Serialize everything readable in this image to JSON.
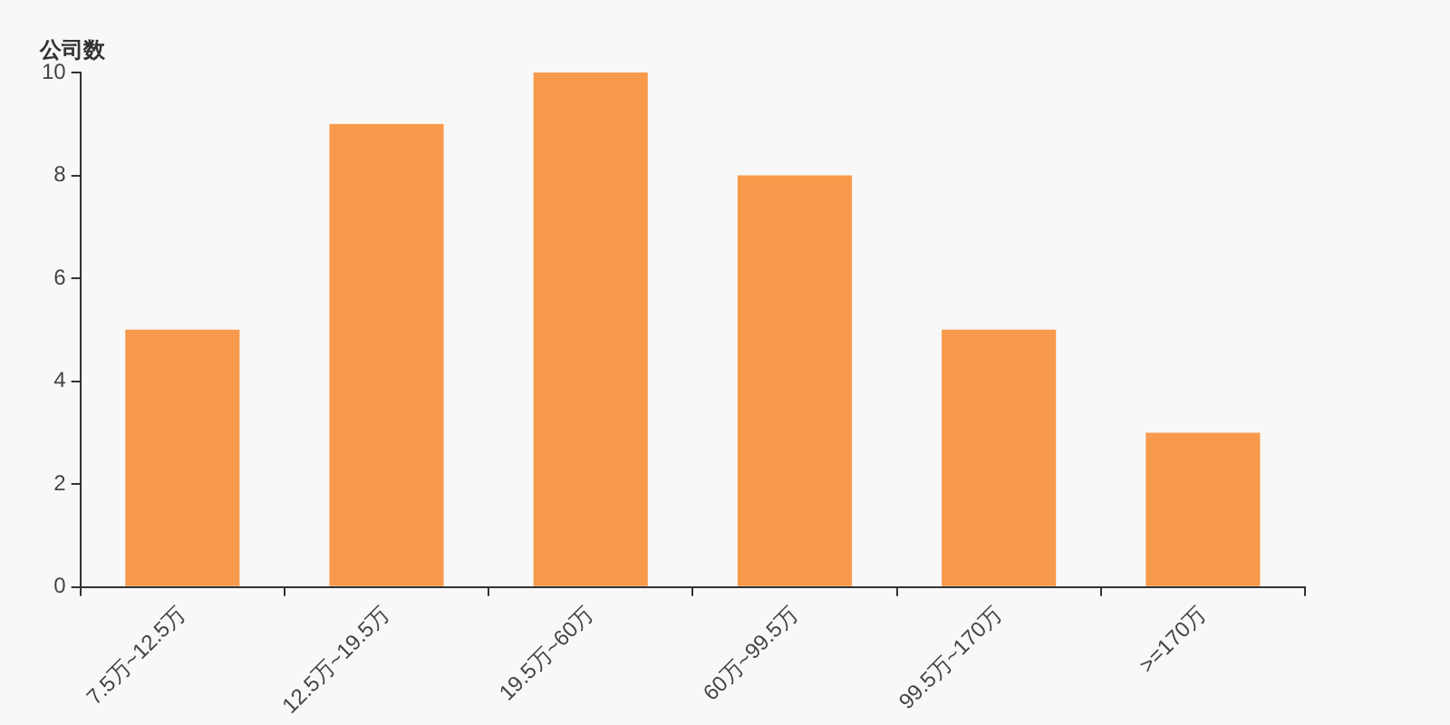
{
  "chart_data": {
    "type": "bar",
    "ylabel": "公司数",
    "categories": [
      "7.5万~12.5万",
      "12.5万~19.5万",
      "19.5万~60万",
      "60万~99.5万",
      "99.5万~170万",
      ">=170万"
    ],
    "values": [
      5,
      9,
      10,
      8,
      5,
      3
    ],
    "color": "#f89a4b",
    "ylim": [
      0,
      10
    ],
    "yticks": [
      0,
      2,
      4,
      6,
      8,
      10
    ],
    "grid": false,
    "legend": false
  }
}
